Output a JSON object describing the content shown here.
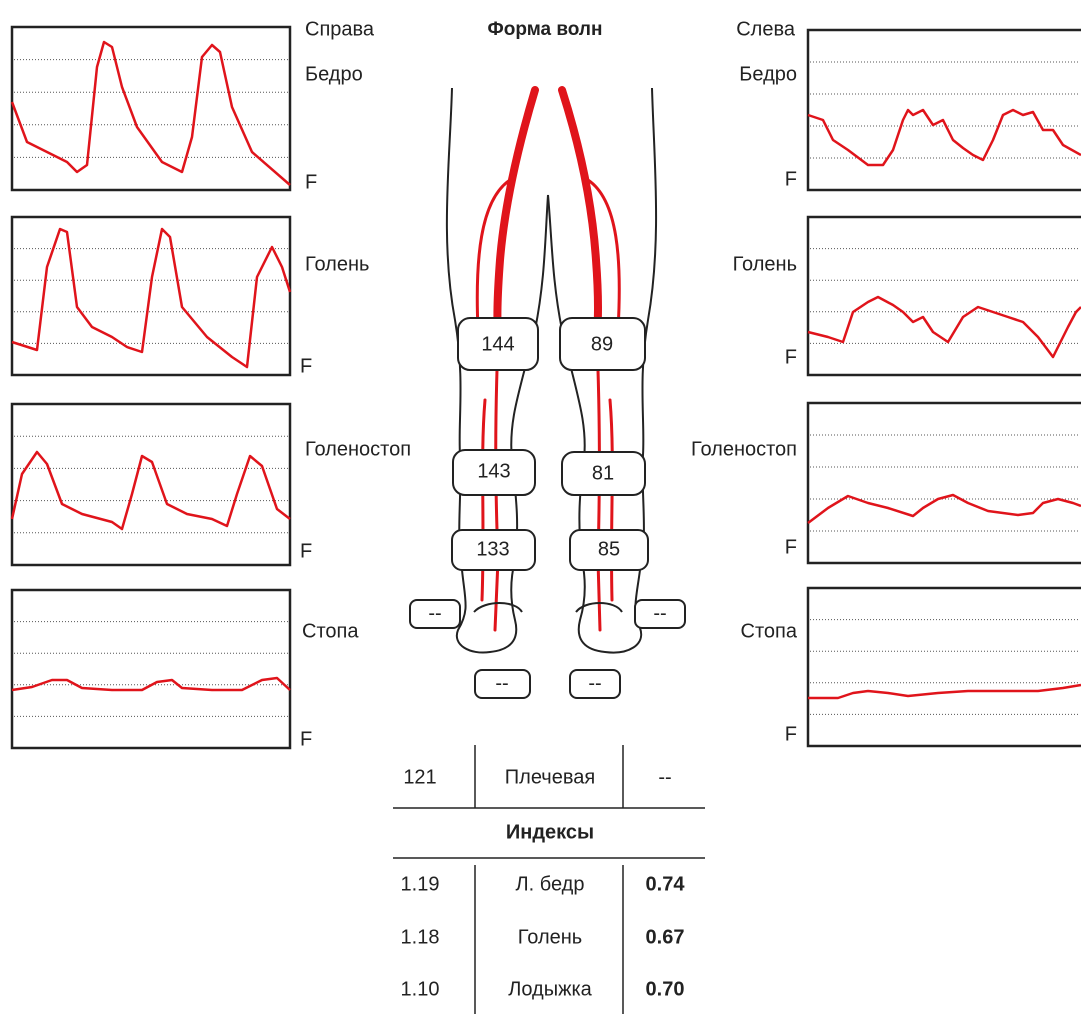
{
  "title": "Форма волн",
  "right": {
    "side": "Справа",
    "panels": [
      {
        "label": "Бедро",
        "axis": "F"
      },
      {
        "label": "Голень",
        "axis": "F"
      },
      {
        "label": "Голеностоп",
        "axis": "F"
      },
      {
        "label": "Стопа",
        "axis": "F"
      }
    ]
  },
  "left": {
    "side": "Слева",
    "panels": [
      {
        "label": "Бедро",
        "axis": "F"
      },
      {
        "label": "Голень",
        "axis": "F"
      },
      {
        "label": "Голеностоп",
        "axis": "F"
      },
      {
        "label": "Стопа",
        "axis": "F"
      }
    ]
  },
  "cuffs": {
    "right": [
      "144",
      "143",
      "133"
    ],
    "left": [
      "89",
      "81",
      "85"
    ],
    "toe": [
      "--",
      "--",
      "--",
      "--"
    ]
  },
  "brachial": {
    "right": "121",
    "label": "Плечевая",
    "left": "--"
  },
  "indices": {
    "title": "Индексы",
    "rows": [
      [
        "1.19",
        "Л. бедр",
        "0.74"
      ],
      [
        "1.18",
        "Голень",
        "0.67"
      ],
      [
        "1.10",
        "Лодыжка",
        "0.70"
      ]
    ]
  }
}
